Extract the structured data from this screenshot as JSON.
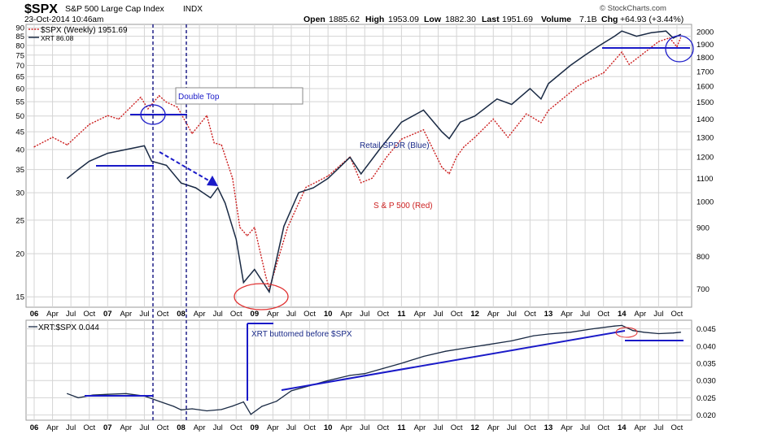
{
  "header": {
    "symbol": "$SPX",
    "name": "S&P 500 Large Cap Index",
    "exchange": "INDX",
    "date": "23-Oct-2014 10:46am",
    "open_label": "Open",
    "open": "1885.62",
    "high_label": "High",
    "high": "1953.09",
    "low_label": "Low",
    "low": "1882.30",
    "last_label": "Last",
    "last": "1951.69",
    "volume_label": "Volume",
    "volume": "7.1B",
    "chg_label": "Chg",
    "chg": "+64.93 (+3.44%)",
    "source": "© StockCharts.com"
  },
  "legend": {
    "spx": "$SPX (Weekly) 1951.69",
    "xrt": "XRT 86.08",
    "ratio": "XRT:$SPX 0.044"
  },
  "annotations": {
    "double_top": "Double Top",
    "retail": "Retail SPDR (Blue)",
    "sp500": "S & P 500 (Red)",
    "xrt_bottomed": "XRT buttomed before $SPX"
  },
  "colors": {
    "spx": "#cc1f1f",
    "xrt": "#1a2a44",
    "annotation_blue": "#1a1ac8",
    "circle_red": "#e03030",
    "circle_blue": "#1a1ac8"
  },
  "chart_data": [
    {
      "type": "line",
      "panel": "main",
      "scale": "log",
      "left_axis_ticks": [
        15,
        20,
        25,
        30,
        35,
        40,
        45,
        50,
        55,
        60,
        65,
        70,
        75,
        80,
        85,
        90
      ],
      "right_axis_ticks": [
        700,
        800,
        900,
        1000,
        1100,
        1200,
        1300,
        1400,
        1500,
        1600,
        1700,
        1800,
        1900,
        2000
      ],
      "x_labels": [
        "06",
        "Apr",
        "Jul",
        "Oct",
        "07",
        "Apr",
        "Jul",
        "Oct",
        "08",
        "Apr",
        "Jul",
        "Oct",
        "09",
        "Apr",
        "Jul",
        "Oct",
        "10",
        "Apr",
        "Jul",
        "Oct",
        "11",
        "Apr",
        "Jul",
        "Oct",
        "12",
        "Apr",
        "Jul",
        "Oct",
        "13",
        "Apr",
        "Jul",
        "Oct",
        "14",
        "Apr",
        "Jul",
        "Oct"
      ],
      "series": [
        {
          "name": "$SPX (Weekly)",
          "axis": "right",
          "x": [
            2006.0,
            2006.25,
            2006.45,
            2006.75,
            2007.0,
            2007.15,
            2007.45,
            2007.55,
            2007.7,
            2007.8,
            2007.95,
            2008.15,
            2008.35,
            2008.45,
            2008.55,
            2008.7,
            2008.8,
            2008.9,
            2009.0,
            2009.15,
            2009.2,
            2009.45,
            2009.7,
            2010.0,
            2010.3,
            2010.45,
            2010.6,
            2010.8,
            2011.0,
            2011.3,
            2011.55,
            2011.65,
            2011.75,
            2011.85,
            2012.0,
            2012.25,
            2012.45,
            2012.7,
            2012.9,
            2013.0,
            2013.4,
            2013.5,
            2013.75,
            2014.0,
            2014.1,
            2014.5,
            2014.65,
            2014.75,
            2014.8
          ],
          "y": [
            1250,
            1300,
            1260,
            1370,
            1420,
            1400,
            1530,
            1460,
            1540,
            1500,
            1470,
            1320,
            1420,
            1270,
            1260,
            1100,
            900,
            870,
            900,
            740,
            700,
            900,
            1060,
            1110,
            1200,
            1080,
            1100,
            1200,
            1290,
            1340,
            1150,
            1120,
            1200,
            1250,
            1300,
            1400,
            1300,
            1430,
            1380,
            1450,
            1600,
            1630,
            1690,
            1840,
            1750,
            1920,
            1950,
            1880,
            1951
          ]
        },
        {
          "name": "XRT",
          "axis": "left",
          "x": [
            2006.45,
            2006.6,
            2006.75,
            2007.0,
            2007.25,
            2007.5,
            2007.6,
            2007.8,
            2008.0,
            2008.2,
            2008.4,
            2008.5,
            2008.6,
            2008.75,
            2008.85,
            2009.0,
            2009.2,
            2009.4,
            2009.6,
            2009.8,
            2010.0,
            2010.3,
            2010.45,
            2010.7,
            2011.0,
            2011.3,
            2011.55,
            2011.65,
            2011.8,
            2012.0,
            2012.3,
            2012.5,
            2012.75,
            2012.9,
            2013.0,
            2013.3,
            2013.5,
            2013.7,
            2013.9,
            2014.0,
            2014.2,
            2014.4,
            2014.6,
            2014.7,
            2014.8
          ],
          "y": [
            33,
            35,
            37,
            39,
            40,
            41,
            37,
            36,
            32,
            31,
            29,
            31,
            28,
            22,
            16.5,
            18,
            15.5,
            24,
            30,
            31,
            33,
            38,
            34,
            40,
            48,
            52,
            45,
            43,
            48,
            50,
            56,
            54,
            60,
            56,
            62,
            70,
            75,
            80,
            85,
            88,
            85,
            87,
            88,
            84,
            86.08
          ]
        }
      ]
    },
    {
      "type": "line",
      "panel": "ratio",
      "right_axis_ticks": [
        0.02,
        0.025,
        0.03,
        0.035,
        0.04,
        0.045
      ],
      "series": [
        {
          "name": "XRT:$SPX",
          "x": [
            2006.45,
            2006.6,
            2006.8,
            2007.0,
            2007.25,
            2007.5,
            2007.7,
            2007.9,
            2008.0,
            2008.15,
            2008.35,
            2008.55,
            2008.7,
            2008.85,
            2008.95,
            2009.1,
            2009.3,
            2009.5,
            2009.75,
            2010.0,
            2010.3,
            2010.5,
            2010.75,
            2011.0,
            2011.3,
            2011.6,
            2011.9,
            2012.2,
            2012.5,
            2012.8,
            2013.0,
            2013.3,
            2013.6,
            2013.9,
            2014.0,
            2014.15,
            2014.3,
            2014.5,
            2014.7,
            2014.8
          ],
          "y": [
            0.0262,
            0.025,
            0.0258,
            0.026,
            0.0262,
            0.0255,
            0.024,
            0.0225,
            0.0215,
            0.0218,
            0.0212,
            0.0216,
            0.0226,
            0.0238,
            0.0202,
            0.0225,
            0.024,
            0.027,
            0.0285,
            0.03,
            0.0315,
            0.032,
            0.0335,
            0.035,
            0.037,
            0.0385,
            0.0395,
            0.0405,
            0.0415,
            0.043,
            0.0435,
            0.044,
            0.045,
            0.0458,
            0.046,
            0.0445,
            0.044,
            0.0436,
            0.0438,
            0.044
          ]
        }
      ]
    }
  ]
}
